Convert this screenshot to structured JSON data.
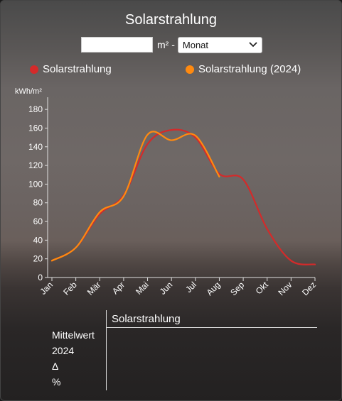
{
  "title": "Solarstrahlung",
  "controls": {
    "area_value": "",
    "area_unit": "m² -",
    "period_select": "Monat"
  },
  "legend": [
    {
      "label": "Solarstrahlung",
      "color": "#d42a2a"
    },
    {
      "label": "Solarstrahlung (2024)",
      "color": "#ff8a10"
    }
  ],
  "chart_data": {
    "type": "line",
    "ylabel": "kWh/m²",
    "ylim": [
      0,
      190
    ],
    "yticks": [
      0,
      20,
      40,
      60,
      80,
      100,
      120,
      140,
      160,
      180
    ],
    "categories": [
      "Jan",
      "Feb",
      "Mär",
      "Apr",
      "Mai",
      "Jun",
      "Jul",
      "Aug",
      "Sep",
      "Okt",
      "Nov",
      "Dez"
    ],
    "series": [
      {
        "name": "Solarstrahlung",
        "color": "#d42a2a",
        "values": [
          18,
          32,
          68,
          88,
          143,
          158,
          150,
          111,
          105,
          52,
          18,
          14
        ]
      },
      {
        "name": "Solarstrahlung (2024)",
        "color": "#ff8a10",
        "values": [
          18,
          32,
          70,
          87,
          153,
          147,
          152,
          108,
          null,
          null,
          null,
          null
        ]
      }
    ],
    "grid": false
  },
  "stats": {
    "column_header": "Solarstrahlung",
    "rows": [
      "Mittelwert",
      "2024",
      "Δ",
      "%"
    ]
  }
}
